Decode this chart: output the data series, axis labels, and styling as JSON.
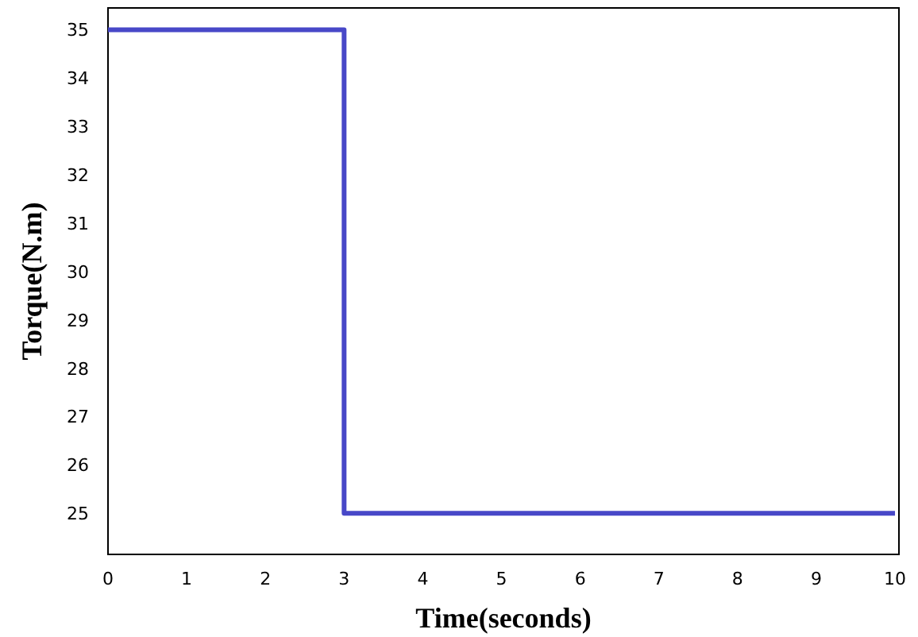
{
  "chart_data": {
    "type": "step",
    "xlabel": "Time(seconds)",
    "ylabel": "Torque(N.m)",
    "x": [
      0,
      3,
      10
    ],
    "series": [
      {
        "color": "#4848c8",
        "values": [
          35,
          25,
          25
        ]
      }
    ],
    "xlim": [
      0,
      10.05
    ],
    "xticks": [
      0,
      1,
      2,
      3,
      4,
      5,
      6,
      7,
      8,
      9,
      10
    ],
    "ylim": [
      24.15,
      35.45
    ],
    "yticks": [
      25,
      26,
      27,
      28,
      29,
      30,
      31,
      32,
      33,
      34,
      35
    ],
    "grid": false
  }
}
